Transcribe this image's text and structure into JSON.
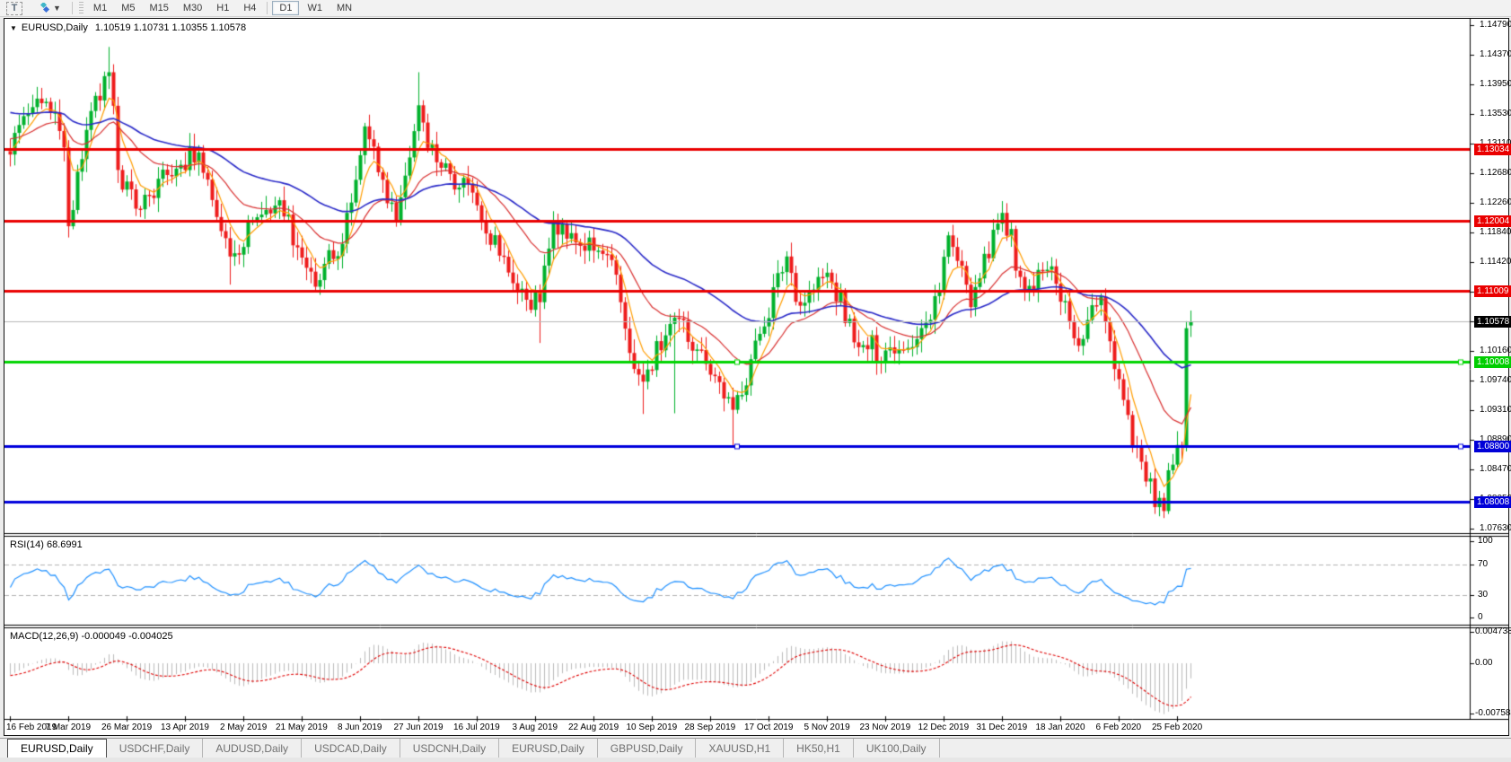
{
  "toolbar": {
    "text_tool_label": "T",
    "timeframes": [
      "M1",
      "M5",
      "M15",
      "M30",
      "H1",
      "H4",
      "D1",
      "W1",
      "MN"
    ],
    "active_timeframe": "D1"
  },
  "chart_header": {
    "symbol_label": "EURUSD,Daily",
    "ohlc_label": "1.10519 1.10731 1.10355 1.10578"
  },
  "price_axis": {
    "ticks": [
      "1.14790",
      "1.14370",
      "1.13950",
      "1.13530",
      "1.13110",
      "1.12680",
      "1.12260",
      "1.11840",
      "1.11420",
      "1.11000",
      "1.10580",
      "1.10160",
      "1.09740",
      "1.09310",
      "1.08890",
      "1.08470",
      "1.08050",
      "1.07630"
    ]
  },
  "rsi_panel": {
    "label": "RSI(14) 68.6991",
    "ticks": [
      "100",
      "70",
      "30",
      "0"
    ],
    "tick_values": [
      100,
      70,
      30,
      0
    ],
    "dashed_levels": [
      70,
      30
    ],
    "line_color": "#1e90ff"
  },
  "macd_panel": {
    "label": "MACD(12,26,9) -0.000049 -0.004025",
    "ticks": [
      "0.004738",
      "0.00",
      "-0.007584"
    ],
    "tick_values": [
      0.004738,
      0,
      -0.007584
    ],
    "hist_color": "#bcbcbc",
    "signal_color": "#e00000"
  },
  "date_axis": {
    "labels": [
      "16 Feb 2019",
      "7 Mar 2019",
      "26 Mar 2019",
      "13 Apr 2019",
      "2 May 2019",
      "21 May 2019",
      "8 Jun 2019",
      "27 Jun 2019",
      "16 Jul 2019",
      "3 Aug 2019",
      "22 Aug 2019",
      "10 Sep 2019",
      "28 Sep 2019",
      "17 Oct 2019",
      "5 Nov 2019",
      "23 Nov 2019",
      "12 Dec 2019",
      "31 Dec 2019",
      "18 Jan 2020",
      "6 Feb 2020",
      "25 Feb 2020"
    ]
  },
  "tabs": {
    "items": [
      "EURUSD,Daily",
      "USDCHF,Daily",
      "AUDUSD,Daily",
      "USDCAD,Daily",
      "USDCNH,Daily",
      "EURUSD,Daily",
      "GBPUSD,Daily",
      "XAUUSD,H1",
      "HK50,H1",
      "UK100,Daily"
    ],
    "active_index": 0
  },
  "chart_data": {
    "type": "candlestick",
    "symbol": "EURUSD",
    "timeframe": "Daily",
    "title": "EURUSD,Daily 1.10519 1.10731 1.10355 1.10578",
    "y_range": [
      1.0763,
      1.1479
    ],
    "num_bars": 264,
    "up_color": "#00b22c",
    "down_color": "#ee1c1c",
    "ohlc_current": {
      "open": 1.10519,
      "high": 1.10731,
      "low": 1.10355,
      "close": 1.10578
    },
    "pre_anchors": [
      [
        -60,
        1.1455
      ],
      [
        -40,
        1.1405
      ],
      [
        -20,
        1.134
      ]
    ],
    "anchor_closes": [
      [
        0,
        1.1295
      ],
      [
        2,
        1.1337
      ],
      [
        8,
        1.137
      ],
      [
        12,
        1.1305
      ],
      [
        13,
        1.1193
      ],
      [
        17,
        1.133
      ],
      [
        22,
        1.1412
      ],
      [
        24,
        1.1273
      ],
      [
        28,
        1.1218
      ],
      [
        37,
        1.1275
      ],
      [
        42,
        1.1298
      ],
      [
        49,
        1.115
      ],
      [
        54,
        1.12
      ],
      [
        60,
        1.123
      ],
      [
        68,
        1.1107
      ],
      [
        74,
        1.1168
      ],
      [
        79,
        1.1335
      ],
      [
        86,
        1.12
      ],
      [
        91,
        1.1365
      ],
      [
        95,
        1.1284
      ],
      [
        102,
        1.1253
      ],
      [
        113,
        1.1101
      ],
      [
        118,
        1.1085
      ],
      [
        121,
        1.12
      ],
      [
        126,
        1.117
      ],
      [
        134,
        1.1145
      ],
      [
        139,
        1.099
      ],
      [
        141,
        1.0972
      ],
      [
        148,
        1.1063
      ],
      [
        154,
        1.1017
      ],
      [
        161,
        1.0932
      ],
      [
        167,
        1.104
      ],
      [
        173,
        1.115
      ],
      [
        176,
        1.108
      ],
      [
        182,
        1.1127
      ],
      [
        189,
        1.1021
      ],
      [
        198,
        1.1018
      ],
      [
        205,
        1.106
      ],
      [
        209,
        1.118
      ],
      [
        214,
        1.1078
      ],
      [
        221,
        1.1212
      ],
      [
        226,
        1.1103
      ],
      [
        232,
        1.1136
      ],
      [
        238,
        1.1023
      ],
      [
        243,
        1.1093
      ],
      [
        248,
        1.0946
      ],
      [
        253,
        1.083
      ],
      [
        257,
        1.0788
      ],
      [
        258,
        1.0846
      ],
      [
        259,
        1.0854
      ],
      [
        260,
        1.0882
      ],
      [
        261,
        1.088
      ],
      [
        262,
        1.1048
      ],
      [
        263,
        1.10578
      ]
    ],
    "spike_highs": [
      [
        22,
        1.1448
      ],
      [
        91,
        1.1412
      ]
    ],
    "spike_lows": [
      [
        13,
        1.1177
      ],
      [
        49,
        1.111
      ],
      [
        118,
        1.1027
      ],
      [
        141,
        1.0926
      ],
      [
        148,
        1.0927
      ],
      [
        161,
        1.0879
      ],
      [
        257,
        1.0778
      ]
    ],
    "moving_averages": [
      {
        "name": "fast-ma",
        "period": 6,
        "color": "#ff9d00",
        "width": 1.2
      },
      {
        "name": "medium-ma",
        "period": 22,
        "color": "#d93030",
        "width": 1.2
      },
      {
        "name": "slow-ma",
        "period": 55,
        "color": "#2929c8",
        "width": 1.6
      }
    ],
    "levels": [
      {
        "label": "1.13034",
        "price": 1.13034,
        "color": "#ea0000",
        "badge_bg": "#ea0000",
        "thickness": 3,
        "handle": false
      },
      {
        "label": "1.12004",
        "price": 1.12004,
        "color": "#ea0000",
        "badge_bg": "#ea0000",
        "thickness": 3,
        "handle": false
      },
      {
        "label": "1.11009",
        "price": 1.11009,
        "color": "#ea0000",
        "badge_bg": "#ea0000",
        "thickness": 3,
        "handle": false
      },
      {
        "label": "1.10578",
        "price": 1.10578,
        "color": "#b8b8b8",
        "badge_bg": "#000000",
        "thickness": 1,
        "handle": false
      },
      {
        "label": "1.10008",
        "price": 1.10008,
        "color": "#00d400",
        "badge_bg": "#00ce00",
        "thickness": 3,
        "handle": true
      },
      {
        "label": "1.08800",
        "price": 1.088,
        "color": "#0000dd",
        "badge_bg": "#0000d8",
        "thickness": 3,
        "handle": true
      },
      {
        "label": "1.08008",
        "price": 1.08008,
        "color": "#0000dd",
        "badge_bg": "#0000d8",
        "thickness": 3,
        "handle": false
      }
    ],
    "rsi": {
      "period": 14,
      "last_value": 68.6991
    },
    "macd": {
      "fast": 12,
      "slow": 26,
      "signal": 9,
      "main_value": -4.9e-05,
      "signal_value": -0.004025
    }
  }
}
